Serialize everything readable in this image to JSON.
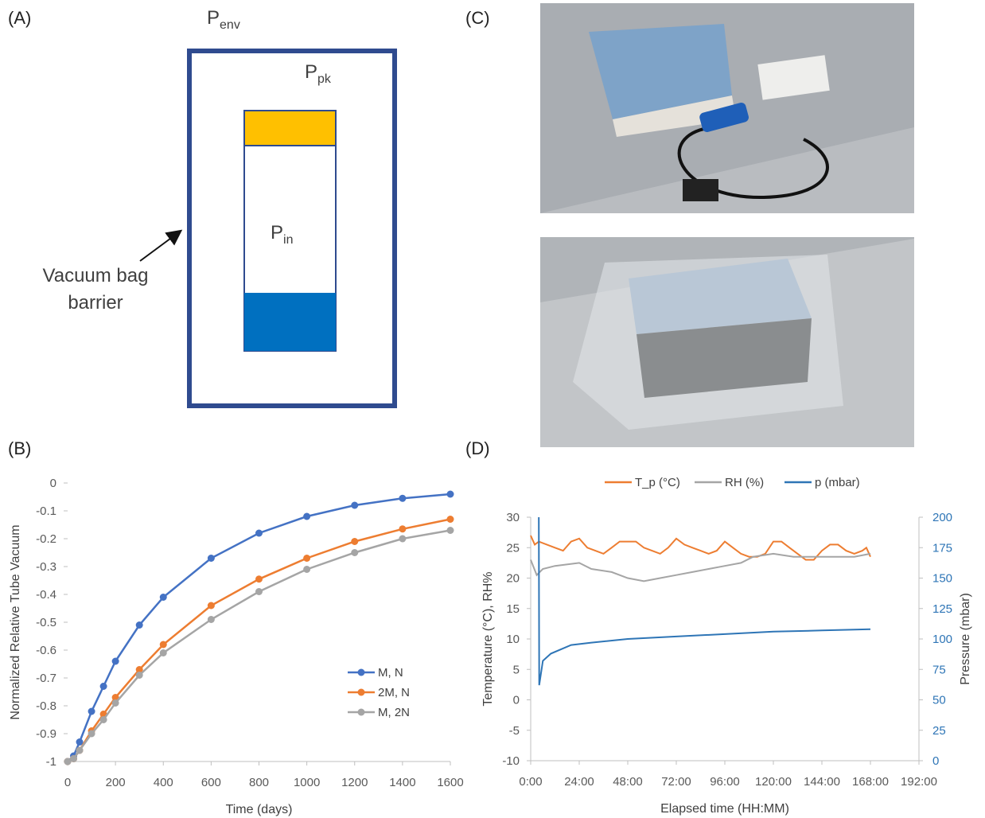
{
  "diagram": {
    "panel_label": "(A)",
    "p_env": {
      "symbol": "P",
      "subscript": "env"
    },
    "p_pk": {
      "symbol": "P",
      "subscript": "pk"
    },
    "p_in": {
      "symbol": "P",
      "subscript": "in"
    },
    "barrier_label": [
      "Vacuum bag",
      "barrier"
    ]
  },
  "photos": {
    "panel_label": "(C)"
  },
  "chart_data": [
    {
      "type": "line",
      "panel_label": "(B)",
      "x_label": "Time (days)",
      "y_label": "Normalized Relative Tube Vacuum",
      "x": [
        0,
        25,
        50,
        100,
        150,
        200,
        300,
        400,
        600,
        800,
        1000,
        1200,
        1400,
        1600
      ],
      "series": [
        {
          "name": "M, N",
          "color": "#4472c4",
          "values": [
            -1,
            -0.98,
            -0.93,
            -0.82,
            -0.73,
            -0.64,
            -0.51,
            -0.41,
            -0.27,
            -0.18,
            -0.12,
            -0.08,
            -0.055,
            -0.04
          ]
        },
        {
          "name": "2M, N",
          "color": "#ed7d31",
          "values": [
            -1,
            -0.99,
            -0.96,
            -0.89,
            -0.83,
            -0.77,
            -0.67,
            -0.58,
            -0.44,
            -0.345,
            -0.27,
            -0.21,
            -0.165,
            -0.13
          ]
        },
        {
          "name": "M, 2N",
          "color": "#a5a5a5",
          "values": [
            -1,
            -0.99,
            -0.96,
            -0.9,
            -0.85,
            -0.79,
            -0.69,
            -0.61,
            -0.49,
            -0.39,
            -0.31,
            -0.25,
            -0.2,
            -0.17
          ]
        }
      ],
      "markers": true,
      "xlim": [
        0,
        1600
      ],
      "xticks": [
        0,
        200,
        400,
        600,
        800,
        1000,
        1200,
        1400,
        1600
      ],
      "ylim": [
        -1,
        0
      ],
      "yticks": [
        0,
        -0.1,
        -0.2,
        -0.3,
        -0.4,
        -0.5,
        -0.6,
        -0.7,
        -0.8,
        -0.9,
        -1
      ],
      "legend": "right"
    },
    {
      "type": "line",
      "panel_label": "(D)",
      "x_label": "Elapsed time (HH:MM)",
      "y_label": "Temperature (°C), RH%",
      "y2_label": "Pressure (mbar)",
      "series": [
        {
          "name": "T_p (°C)",
          "color": "#ed7d31",
          "x": [
            0,
            2,
            4,
            8,
            12,
            16,
            20,
            24,
            28,
            32,
            36,
            40,
            44,
            48,
            52,
            56,
            60,
            64,
            68,
            72,
            76,
            80,
            84,
            88,
            92,
            96,
            100,
            104,
            108,
            112,
            116,
            120,
            124,
            128,
            132,
            136,
            140,
            144,
            148,
            152,
            156,
            160,
            164,
            166,
            168
          ],
          "values": [
            27,
            25.5,
            26,
            25.5,
            25,
            24.5,
            26,
            26.5,
            25,
            24.5,
            24,
            25,
            26,
            26,
            26,
            25,
            24.5,
            24,
            25,
            26.5,
            25.5,
            25,
            24.5,
            24,
            24.5,
            26,
            25,
            24,
            23.5,
            23.5,
            24,
            26,
            26,
            25,
            24,
            23,
            23,
            24.5,
            25.5,
            25.5,
            24.5,
            24,
            24.5,
            25,
            23.5
          ]
        },
        {
          "name": "RH (%)",
          "color": "#a5a5a5",
          "x": [
            0,
            3,
            6,
            12,
            24,
            30,
            40,
            48,
            56,
            64,
            72,
            80,
            88,
            96,
            104,
            110,
            120,
            130,
            140,
            150,
            160,
            168
          ],
          "values": [
            23,
            20.5,
            21.5,
            22,
            22.5,
            21.5,
            21,
            20,
            19.5,
            20,
            20.5,
            21,
            21.5,
            22,
            22.5,
            23.5,
            24,
            23.5,
            23.5,
            23.5,
            23.5,
            24
          ]
        },
        {
          "name": "p (mbar)",
          "color": "#2e75b6",
          "axis": "y2",
          "x": [
            4,
            4.2,
            6,
            10,
            20,
            30,
            48,
            72,
            96,
            120,
            144,
            168
          ],
          "values": [
            200,
            62,
            82,
            88,
            95,
            97,
            100,
            102,
            104,
            106,
            107,
            108
          ]
        }
      ],
      "xlim": [
        0,
        192
      ],
      "xticks": [
        {
          "value": 0,
          "label": "0:00"
        },
        {
          "value": 24,
          "label": "24:00"
        },
        {
          "value": 48,
          "label": "48:00"
        },
        {
          "value": 72,
          "label": "72:00"
        },
        {
          "value": 96,
          "label": "96:00"
        },
        {
          "value": 120,
          "label": "120:00"
        },
        {
          "value": 144,
          "label": "144:00"
        },
        {
          "value": 168,
          "label": "168:00"
        },
        {
          "value": 192,
          "label": "192:00"
        }
      ],
      "ylim": [
        -10,
        30
      ],
      "yticks": [
        -10,
        -5,
        0,
        5,
        10,
        15,
        20,
        25,
        30
      ],
      "y2lim": [
        0,
        200
      ],
      "y2ticks": [
        0,
        25,
        50,
        75,
        100,
        125,
        150,
        175,
        200
      ],
      "legend": "top"
    }
  ]
}
